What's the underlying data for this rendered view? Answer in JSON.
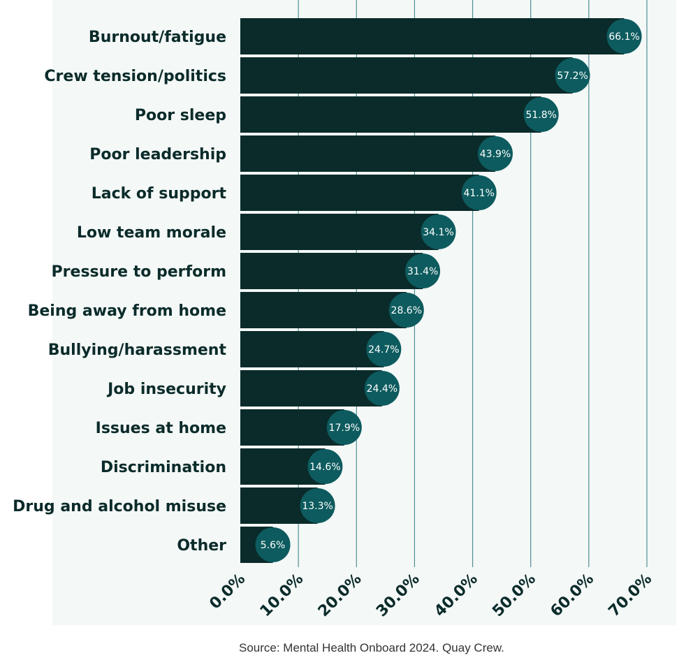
{
  "chart_data": {
    "type": "bar",
    "orientation": "horizontal",
    "categories": [
      "Burnout/fatigue",
      "Crew tension/politics",
      "Poor sleep",
      "Poor leadership",
      "Lack of support",
      "Low team morale",
      "Pressure to perform",
      "Being away from home",
      "Bullying/harassment",
      "Job insecurity",
      "Issues at home",
      "Discrimination",
      "Drug and alcohol misuse",
      "Other"
    ],
    "values": [
      66.1,
      57.2,
      51.8,
      43.9,
      41.1,
      34.1,
      31.4,
      28.6,
      24.7,
      24.4,
      17.9,
      14.6,
      13.3,
      5.6
    ],
    "data_labels": [
      "66.1%",
      "57.2%",
      "51.8%",
      "43.9%",
      "41.1%",
      "34.1%",
      "31.4%",
      "28.6%",
      "24.7%",
      "24.4%",
      "17.9%",
      "14.6%",
      "13.3%",
      "5.6%"
    ],
    "x_ticks": [
      "0.0%",
      "10.0%",
      "20.0%",
      "30.0%",
      "40.0%",
      "50.0%",
      "60.0%",
      "70.0%"
    ],
    "xlim": [
      0,
      70
    ],
    "grid": "vertical",
    "title": "",
    "xlabel": "",
    "ylabel": "",
    "colors": {
      "bar": "#0a2b2a",
      "bubble": "#0d5b5e",
      "grid": "#4f8f93",
      "text": "#0a2b2a"
    }
  },
  "source": "Source: Mental Health Onboard 2024. Quay Crew."
}
